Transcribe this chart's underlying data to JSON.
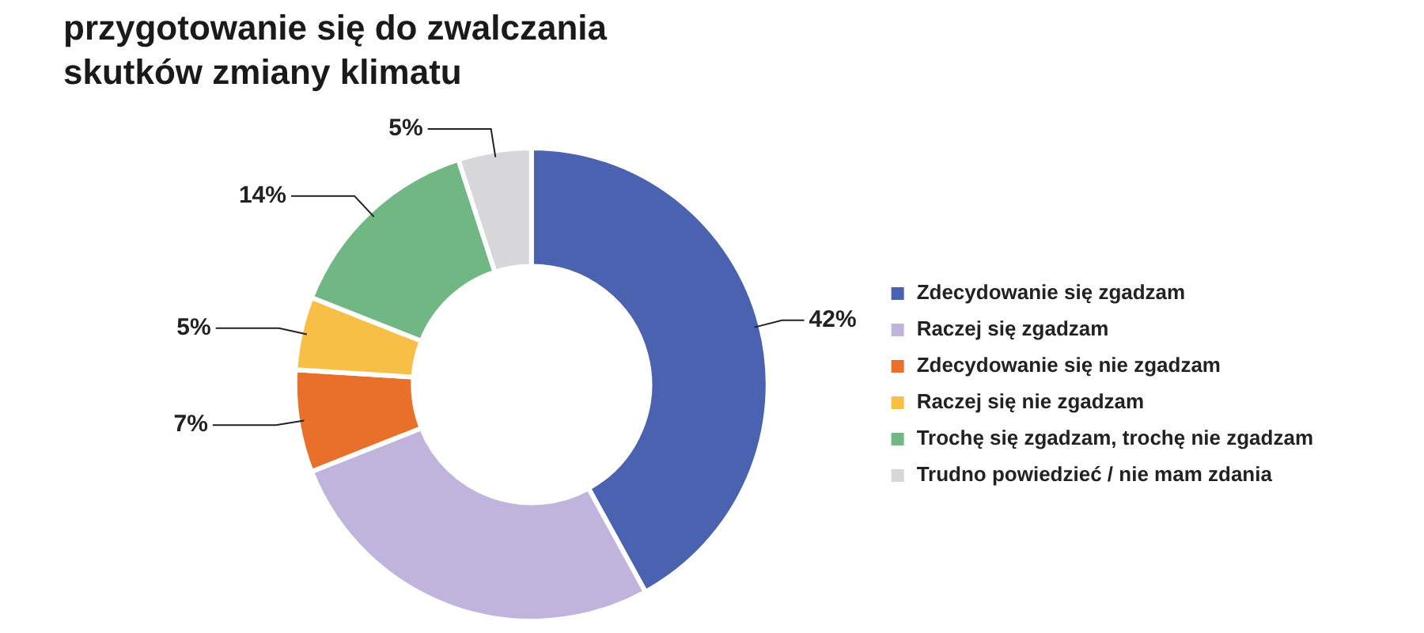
{
  "chart_data": {
    "type": "donut",
    "title": "przygotowanie się do zwalczania\nskutków zmiany klimatu",
    "categories": [
      "Zdecydowanie się zgadzam",
      "Raczej się zgadzam",
      "Zdecydowanie się nie zgadzam",
      "Raczej się nie zgadzam",
      "Trochę się zgadzam, trochę nie zgadzam",
      "Trudno powiedzieć / nie mam zdania"
    ],
    "values": [
      42,
      27,
      7,
      5,
      14,
      5
    ],
    "colors": [
      "#4a62b0",
      "#c1b4dc",
      "#e8702a",
      "#f8bf47",
      "#70b784",
      "#d7d7d9"
    ],
    "value_labels": [
      "42%",
      null,
      "7%",
      "5%",
      "14%",
      "5%"
    ],
    "legend": "right"
  }
}
